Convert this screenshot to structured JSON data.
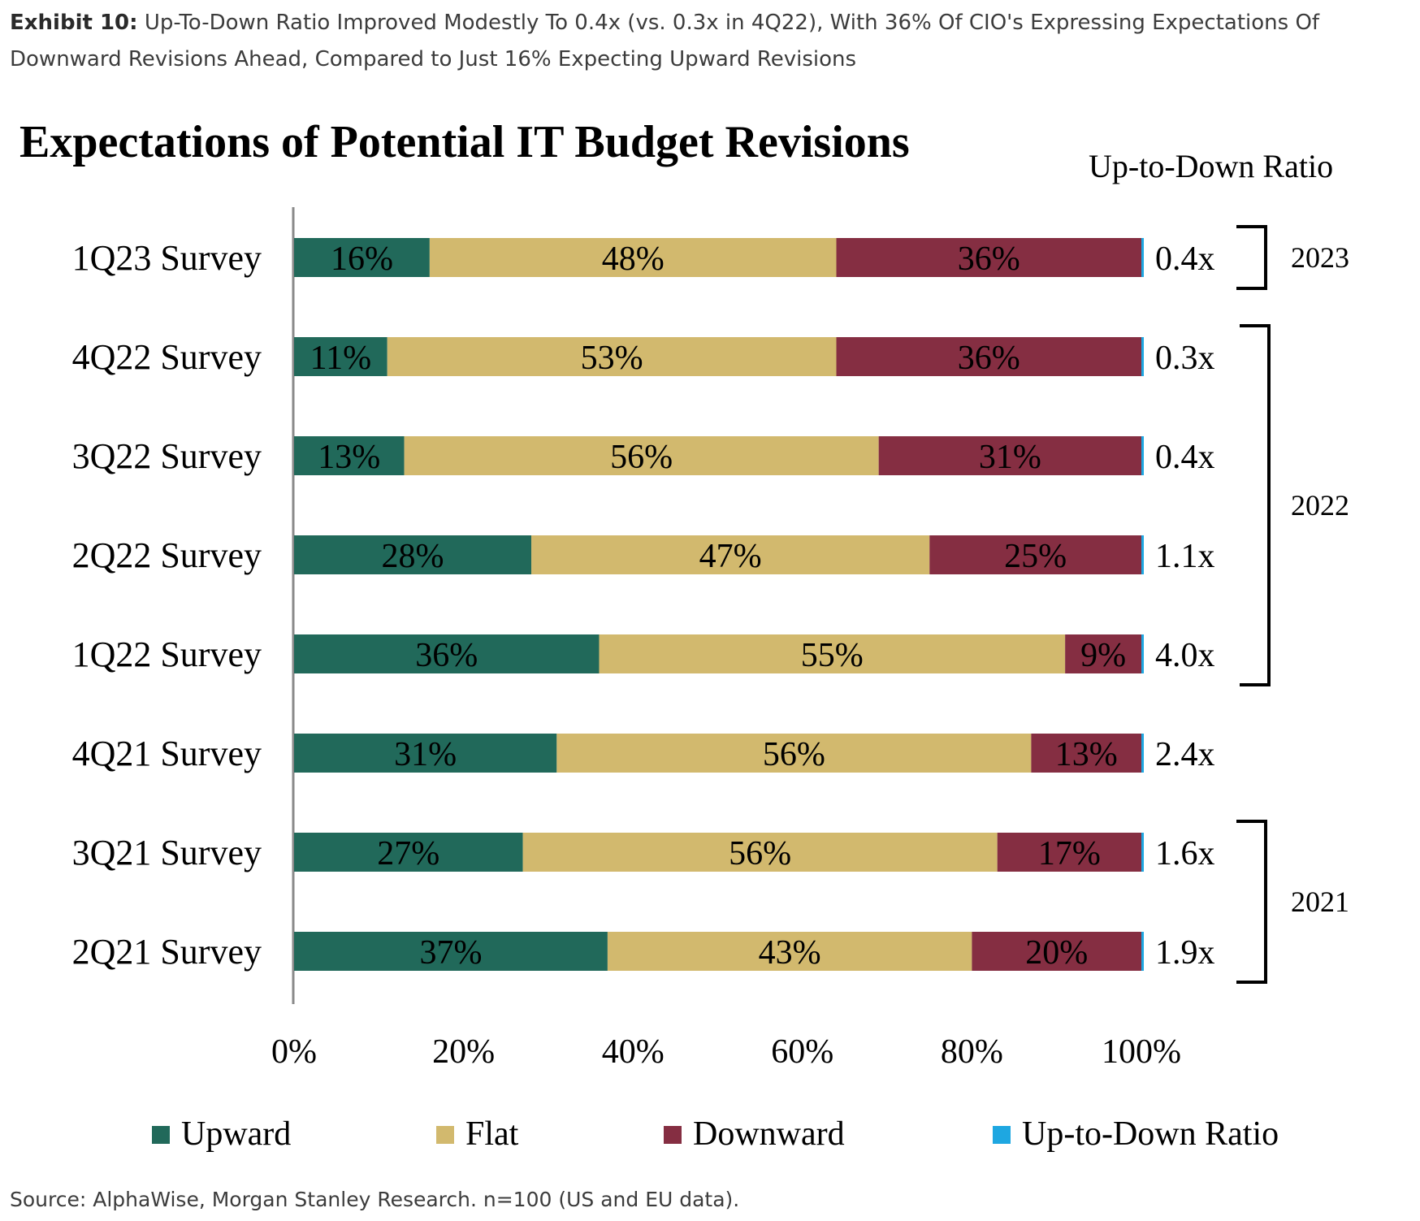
{
  "exhibit": {
    "label": "Exhibit 10:",
    "text": "Up-To-Down Ratio Improved Modestly To 0.4x (vs. 0.3x in 4Q22), With 36% Of CIO's Expressing Expectations Of Downward Revisions Ahead, Compared to Just 16% Expecting Upward Revisions"
  },
  "source": "Source: AlphaWise, Morgan Stanley Research. n=100 (US and EU data).",
  "chart_data": {
    "type": "bar",
    "orientation": "horizontal",
    "stacked": true,
    "title": "Expectations of Potential IT Budget Revisions",
    "ratio_header": "Up-to-Down Ratio",
    "categories": [
      "1Q23 Survey",
      "4Q22 Survey",
      "3Q22 Survey",
      "2Q22 Survey",
      "1Q22 Survey",
      "4Q21 Survey",
      "3Q21 Survey",
      "2Q21 Survey"
    ],
    "series": [
      {
        "name": "Upward",
        "color": "#21695a",
        "values": [
          16,
          11,
          13,
          28,
          36,
          31,
          27,
          37
        ],
        "labels": [
          "16%",
          "11%",
          "13%",
          "28%",
          "36%",
          "31%",
          "27%",
          "37%"
        ]
      },
      {
        "name": "Flat",
        "color": "#d2b96e",
        "values": [
          48,
          53,
          56,
          47,
          55,
          56,
          56,
          43
        ],
        "labels": [
          "48%",
          "53%",
          "56%",
          "47%",
          "55%",
          "56%",
          "56%",
          "43%"
        ]
      },
      {
        "name": "Downward",
        "color": "#852e42",
        "values": [
          36,
          36,
          31,
          25,
          9,
          13,
          17,
          20
        ],
        "labels": [
          "36%",
          "36%",
          "31%",
          "25%",
          "9%",
          "13%",
          "17%",
          "20%"
        ]
      }
    ],
    "ratio_legend": {
      "name": "Up-to-Down Ratio",
      "color": "#1ea7e1"
    },
    "ratios": [
      "0.4x",
      "0.3x",
      "0.4x",
      "1.1x",
      "4.0x",
      "2.4x",
      "1.6x",
      "1.9x"
    ],
    "year_groups": [
      {
        "label": "2023",
        "from": 0,
        "to": 0
      },
      {
        "label": "2022",
        "from": 1,
        "to": 4
      },
      {
        "label": "2021",
        "from": 6,
        "to": 7
      }
    ],
    "x_ticks": [
      "0%",
      "20%",
      "40%",
      "60%",
      "80%",
      "100%"
    ],
    "xlim": [
      0,
      100
    ]
  }
}
